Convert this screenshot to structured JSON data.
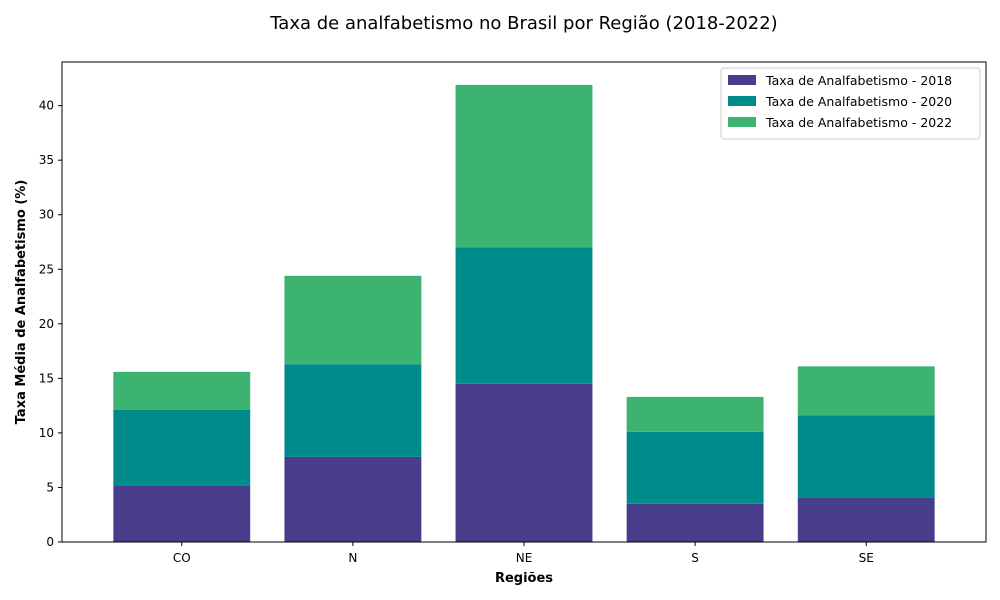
{
  "chart_data": {
    "type": "bar",
    "stacked": true,
    "title": "Taxa de analfabetismo no Brasil por Região (2018-2022)",
    "xlabel": "Regiões",
    "ylabel": "Taxa Média de Analfabetismo (%)",
    "ylim": [
      0,
      44
    ],
    "yticks": [
      0,
      5,
      10,
      15,
      20,
      25,
      30,
      35,
      40
    ],
    "grid": false,
    "legend_position": "top-right",
    "categories": [
      "CO",
      "N",
      "NE",
      "S",
      "SE"
    ],
    "series": [
      {
        "name": "Taxa de Analfabetismo - 2018",
        "color": "#483D8B",
        "values": [
          5.2,
          7.8,
          14.5,
          3.5,
          4.1
        ]
      },
      {
        "name": "Taxa de Analfabetismo - 2020",
        "color": "#008B8B",
        "values": [
          6.9,
          8.5,
          12.5,
          6.6,
          7.5
        ]
      },
      {
        "name": "Taxa de Analfabetismo - 2022",
        "color": "#3CB371",
        "values": [
          3.5,
          8.1,
          14.9,
          3.2,
          4.5
        ]
      }
    ]
  }
}
